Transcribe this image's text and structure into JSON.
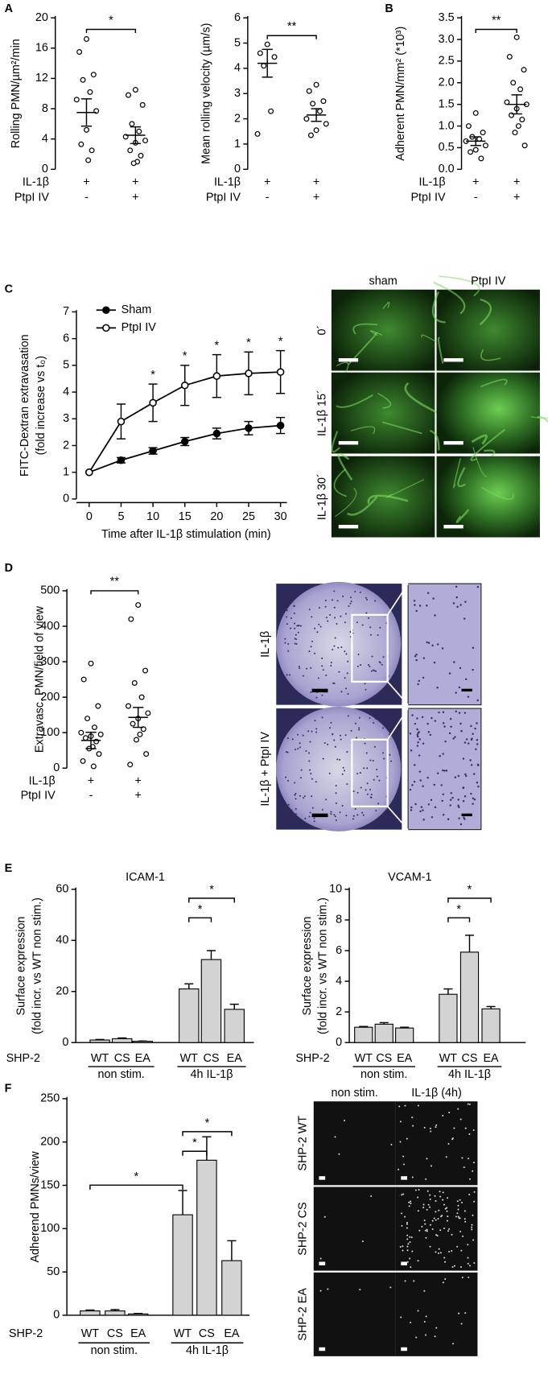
{
  "chart_data": [
    {
      "panel": "A",
      "type": "dotplot",
      "y_label": "Rolling PMN/µm²/min",
      "ylim": [
        0,
        20
      ],
      "yticks": [
        0,
        4,
        8,
        12,
        16,
        20
      ],
      "groups": [
        {
          "values": [
            17.2,
            15.5,
            12.5,
            11.8,
            10.2,
            9.2,
            7.7,
            5.2,
            3.3,
            2.5,
            1.2
          ],
          "mean": 7.5,
          "sem": 1.8
        },
        {
          "values": [
            10.5,
            9.8,
            8.5,
            6.0,
            5.0,
            4.3,
            3.8,
            3.5,
            2.5,
            1.8,
            1.0,
            0.8
          ],
          "mean": 4.5,
          "sem": 1.1
        }
      ],
      "conditions": [
        {
          "name": "IL-1β",
          "values": [
            "+",
            "+"
          ]
        },
        {
          "name": "PtpI IV",
          "values": [
            "-",
            "+"
          ]
        }
      ],
      "significance": [
        {
          "groups": [
            0,
            1
          ],
          "label": "*"
        }
      ]
    },
    {
      "type": "dotplot",
      "y_label": "Mean rolling velocity (µm/s)",
      "ylim": [
        0,
        6
      ],
      "yticks": [
        0,
        1,
        2,
        3,
        4,
        5,
        6
      ],
      "groups": [
        {
          "values": [
            4.95,
            4.6,
            4.45,
            4.1,
            2.3,
            1.4
          ],
          "mean": 4.2,
          "sem": 0.55
        },
        {
          "values": [
            3.35,
            3.1,
            2.7,
            2.6,
            2.3,
            2.0,
            1.8,
            1.55,
            1.35
          ],
          "mean": 2.15,
          "sem": 0.25
        }
      ],
      "conditions": [
        {
          "name": "IL-1β",
          "values": [
            "+",
            "+"
          ]
        },
        {
          "name": "PtpI IV",
          "values": [
            "-",
            "+"
          ]
        }
      ],
      "significance": [
        {
          "groups": [
            0,
            1
          ],
          "label": "**"
        }
      ]
    },
    {
      "panel": "B",
      "type": "dotplot",
      "y_label": "Adherent PMN/mm² (*10³)",
      "ylim": [
        0,
        3.5
      ],
      "yticks": [
        {
          "value": 0,
          "label": "0.0"
        },
        0.5,
        {
          "value": 1,
          "label": "1.0"
        },
        1.5,
        {
          "value": 2,
          "label": "2.0"
        },
        2.5,
        {
          "value": 3,
          "label": "3.0"
        },
        3.5
      ],
      "groups": [
        {
          "values": [
            1.3,
            1.0,
            0.85,
            0.75,
            0.7,
            0.65,
            0.55,
            0.45,
            0.4,
            0.25
          ],
          "mean": 0.65,
          "sem": 0.1
        },
        {
          "values": [
            3.05,
            2.6,
            2.3,
            2.0,
            1.85,
            1.55,
            1.5,
            1.4,
            1.25,
            1.15,
            1.0,
            0.85,
            0.55
          ],
          "mean": 1.5,
          "sem": 0.22
        }
      ],
      "conditions": [
        {
          "name": "IL-1β",
          "values": [
            "+",
            "+"
          ]
        },
        {
          "name": "PtpI IV",
          "values": [
            "-",
            "+"
          ]
        }
      ],
      "significance": [
        {
          "groups": [
            0,
            1
          ],
          "label": "**"
        }
      ]
    },
    {
      "panel": "C",
      "type": "line",
      "y_label": [
        "FITC-Dextran extravasation",
        "(fold increase vs t₀)"
      ],
      "x_label": "Time after IL-1β stimulation (min)",
      "x": [
        0,
        5,
        10,
        15,
        20,
        25,
        30
      ],
      "xlim": [
        -2,
        31
      ],
      "xticks": [
        0,
        5,
        10,
        15,
        20,
        25,
        30
      ],
      "ylim": [
        0,
        7
      ],
      "yticks": [
        0,
        1,
        2,
        3,
        4,
        5,
        6,
        7
      ],
      "series": [
        {
          "name": "Sham",
          "color": "#000000",
          "marker": "filled",
          "values": [
            1,
            1.45,
            1.8,
            2.15,
            2.45,
            2.65,
            2.75
          ],
          "errors": [
            0,
            0.1,
            0.12,
            0.15,
            0.2,
            0.25,
            0.3
          ]
        },
        {
          "name": "PtpI IV",
          "color": "#000000",
          "marker": "open",
          "values": [
            1,
            2.9,
            3.6,
            4.25,
            4.6,
            4.7,
            4.75
          ],
          "errors": [
            0,
            0.65,
            0.7,
            0.75,
            0.8,
            0.8,
            0.8
          ]
        }
      ],
      "significance": [
        {
          "x": 10,
          "label": "*"
        },
        {
          "x": 15,
          "label": "*"
        },
        {
          "x": 20,
          "label": "*"
        },
        {
          "x": 25,
          "label": "*"
        },
        {
          "x": 30,
          "label": "*"
        }
      ]
    },
    {
      "panel": "D",
      "type": "dotplot",
      "y_label": "Extravasc. PMN/field of view",
      "ylim": [
        0,
        500
      ],
      "yticks": [
        0,
        100,
        200,
        300,
        400,
        500
      ],
      "groups": [
        {
          "values": [
            295,
            250,
            175,
            140,
            115,
            100,
            95,
            90,
            85,
            75,
            60,
            55,
            40,
            20,
            5
          ],
          "mean": 78,
          "sem": 23
        },
        {
          "values": [
            460,
            420,
            275,
            240,
            200,
            175,
            155,
            140,
            125,
            110,
            95,
            80,
            40,
            10
          ],
          "mean": 143,
          "sem": 28
        }
      ],
      "conditions": [
        {
          "name": "IL-1β",
          "values": [
            "+",
            "+"
          ]
        },
        {
          "name": "PtpI IV",
          "values": [
            "-",
            "+"
          ]
        }
      ],
      "significance": [
        {
          "groups": [
            0,
            1
          ],
          "label": "**"
        }
      ]
    },
    {
      "panel": "E",
      "type": "bar",
      "title": "ICAM-1",
      "y_label": [
        "Surface expression",
        "(fold incr. vs WT non stim.)"
      ],
      "ylim": [
        0,
        60
      ],
      "yticks": [
        0,
        20,
        40,
        60
      ],
      "color": "#d3d3d3",
      "factor_label": "SHP-2",
      "categories": [
        "WT",
        "CS",
        "EA",
        "WT",
        "CS",
        "EA"
      ],
      "category_groups": [
        {
          "name": "non stim.",
          "size": 3
        },
        {
          "name": "4h IL-1β",
          "size": 3
        }
      ],
      "values": [
        1,
        1.5,
        0.5,
        21,
        32.5,
        13
      ],
      "errors": [
        0.2,
        0.3,
        0.1,
        2,
        3.5,
        2
      ],
      "significance": [
        {
          "groups": [
            3,
            4
          ],
          "label": "*"
        },
        {
          "groups": [
            3,
            5
          ],
          "label": "*"
        }
      ]
    },
    {
      "type": "bar",
      "title": "VCAM-1",
      "y_label": [
        "Surface expression",
        "(fold incr. vs WT non stim.)"
      ],
      "ylim": [
        0,
        10
      ],
      "yticks": [
        0,
        2,
        4,
        6,
        8,
        10
      ],
      "color": "#d3d3d3",
      "factor_label": "SHP-2",
      "categories": [
        "WT",
        "CS",
        "EA",
        "WT",
        "CS",
        "EA"
      ],
      "category_groups": [
        {
          "name": "non stim.",
          "size": 3
        },
        {
          "name": "4h IL-1β",
          "size": 3
        }
      ],
      "values": [
        1,
        1.2,
        0.95,
        3.15,
        5.9,
        2.2
      ],
      "errors": [
        0.05,
        0.1,
        0.05,
        0.35,
        1.1,
        0.15
      ],
      "significance": [
        {
          "groups": [
            3,
            4
          ],
          "label": "*"
        },
        {
          "groups": [
            3,
            5
          ],
          "label": "*"
        }
      ]
    },
    {
      "panel": "F",
      "type": "bar",
      "y_label": "Adherend PMNs/view",
      "ylim": [
        0,
        250
      ],
      "yticks": [
        0,
        50,
        100,
        150,
        200,
        250
      ],
      "color": "#d3d3d3",
      "factor_label": "SHP-2",
      "categories": [
        "WT",
        "CS",
        "EA",
        "WT",
        "CS",
        "EA"
      ],
      "category_groups": [
        {
          "name": "non stim.",
          "size": 3
        },
        {
          "name": "4h IL-1β",
          "size": 3
        }
      ],
      "values": [
        5,
        5,
        1.5,
        116,
        179,
        63
      ],
      "errors": [
        1,
        1.5,
        0.5,
        28,
        27,
        23
      ],
      "significance": [
        {
          "groups": [
            3,
            4
          ],
          "label": "*"
        },
        {
          "groups": [
            3,
            5
          ],
          "label": "*"
        },
        {
          "groups": [
            0,
            3
          ],
          "label": "*"
        }
      ]
    }
  ],
  "images": [
    {
      "columns": [
        "sham",
        "PtpI IV"
      ],
      "rows": [
        "0´",
        "IL-1β 15´",
        "IL-1β 30´"
      ]
    },
    {
      "rows": [
        "IL-1β",
        "IL-1β + PtpI IV"
      ]
    },
    {
      "columns": [
        "non stim.",
        "IL-1β (4h)"
      ],
      "rows": [
        "SHP-2 WT",
        "SHP-2 CS",
        "SHP-2 EA"
      ]
    }
  ]
}
